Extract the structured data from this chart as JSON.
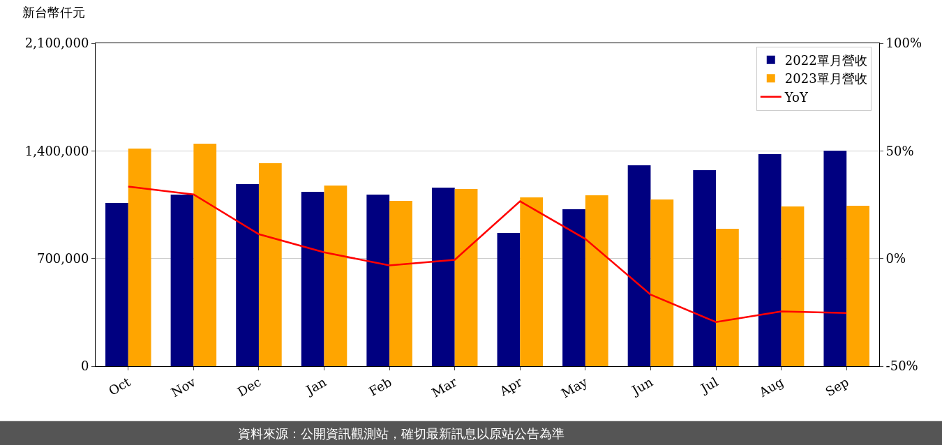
{
  "chart_data": {
    "type": "bar",
    "ylabel": "新台幣仟元",
    "categories": [
      "Oct",
      "Nov",
      "Dec",
      "Jan",
      "Feb",
      "Mar",
      "Apr",
      "May",
      "Jun",
      "Jul",
      "Aug",
      "Sep"
    ],
    "series": [
      {
        "name": "2022單月營收",
        "color": "#000080",
        "values": [
          1061000,
          1116000,
          1184000,
          1134000,
          1116000,
          1161000,
          866000,
          1021000,
          1306000,
          1275000,
          1379000,
          1402000
        ]
      },
      {
        "name": "2023單月營收",
        "color": "#ffa500",
        "values": [
          1415000,
          1447000,
          1320000,
          1175000,
          1075000,
          1152000,
          1098000,
          1111000,
          1084000,
          894000,
          1039000,
          1043000
        ]
      },
      {
        "name": "YoY",
        "type": "line",
        "axis": "y2",
        "color": "#ff0000",
        "values": [
          33.4,
          29.8,
          11.3,
          2.9,
          -3.2,
          -0.6,
          26.6,
          9.1,
          -16.8,
          -29.5,
          -24.6,
          -25.3
        ]
      }
    ],
    "ylim": [
      0,
      2100000
    ],
    "yticks": [
      {
        "value": 0,
        "label": "0"
      },
      {
        "value": 700000,
        "label": "700,000"
      },
      {
        "value": 1400000,
        "label": "1,400,000"
      },
      {
        "value": 2100000,
        "label": "2,100,000"
      }
    ],
    "y2lim": [
      -50,
      100
    ],
    "y2ticks": [
      {
        "value": -50,
        "label": "-50%"
      },
      {
        "value": 0,
        "label": "0%"
      },
      {
        "value": 50,
        "label": "50%"
      },
      {
        "value": 100,
        "label": "100%"
      }
    ],
    "grid": "y",
    "legend": "top right",
    "line_style": "solid",
    "annotations": [
      "資料來源：公開資訊觀測站，確切最新訊息以原站公告為準"
    ]
  }
}
